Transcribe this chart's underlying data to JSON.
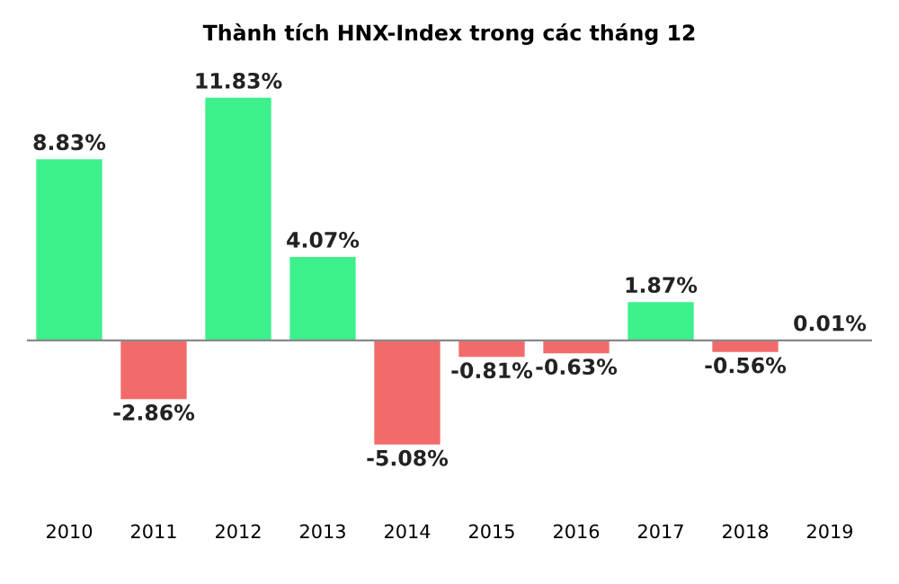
{
  "chart_data": {
    "type": "bar",
    "title": "Thành tích HNX-Index trong các tháng 12",
    "categories": [
      "2010",
      "2011",
      "2012",
      "2013",
      "2014",
      "2015",
      "2016",
      "2017",
      "2018",
      "2019"
    ],
    "values": [
      8.83,
      -2.86,
      11.83,
      4.07,
      -5.08,
      -0.81,
      -0.63,
      1.87,
      -0.56,
      0.01
    ],
    "value_labels": [
      "8.83%",
      "-2.86%",
      "11.83%",
      "4.07%",
      "-5.08%",
      "-0.81%",
      "-0.63%",
      "1.87%",
      "-0.56%",
      "0.01%"
    ],
    "colors": [
      "#3cf08c",
      "#f26b6b",
      "#3cf08c",
      "#3cf08c",
      "#f26b6b",
      "#f26b6b",
      "#f26b6b",
      "#3cf08c",
      "#f26b6b",
      "#3cf08c"
    ],
    "grid": false,
    "legend": false
  }
}
